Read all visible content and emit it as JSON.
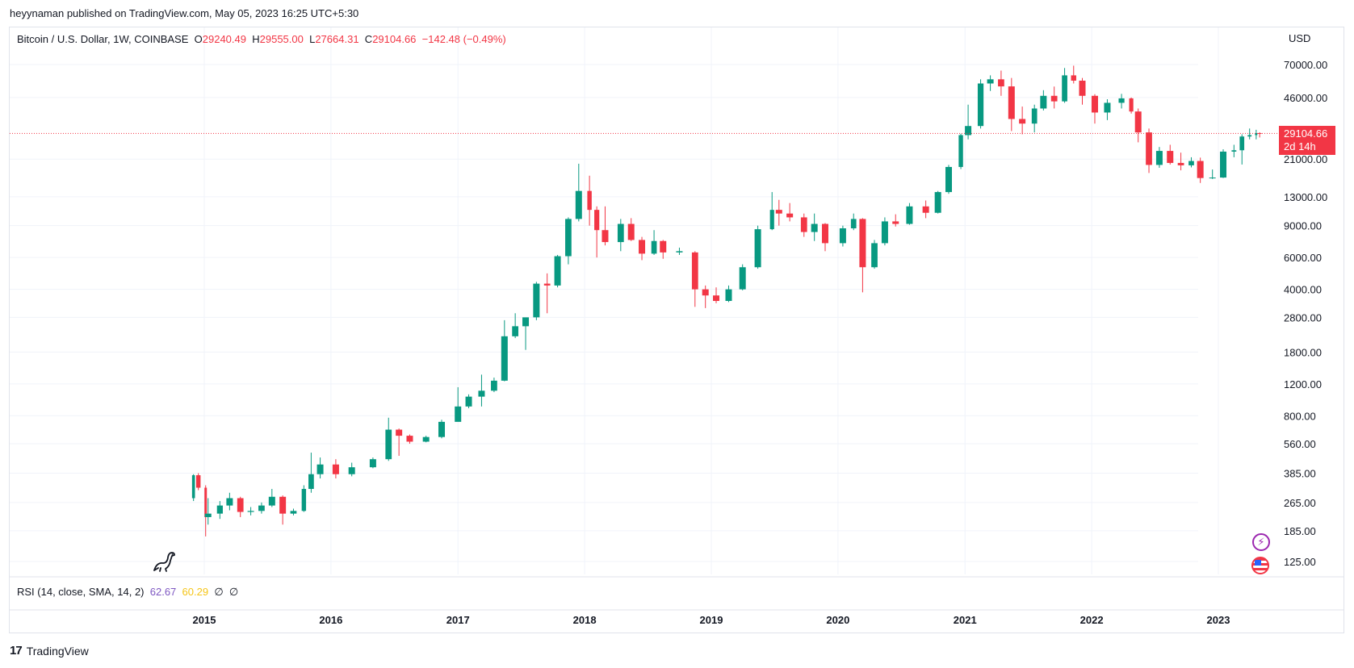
{
  "header": {
    "publisher_line": "heyynaman published on TradingView.com, May 05, 2023 16:25 UTC+5:30"
  },
  "legend": {
    "symbol": "Bitcoin / U.S. Dollar, 1W, COINBASE",
    "open_label": "O",
    "open": "29240.49",
    "high_label": "H",
    "high": "29555.00",
    "low_label": "L",
    "low": "27664.31",
    "close_label": "C",
    "close": "29104.66",
    "change": "−142.48 (−0.49%)"
  },
  "price_tag": {
    "price": "29104.66",
    "countdown": "2d 14h"
  },
  "rsi": {
    "label": "RSI (14, close, SMA, 14, 2)",
    "value": "62.67",
    "sma": "60.29",
    "extra1": "∅",
    "extra2": "∅"
  },
  "footer": {
    "brand": "TradingView",
    "logo_icon": "tradingview-logo-icon"
  },
  "colors": {
    "up": "#089981",
    "down": "#f23645",
    "grid": "#f0f3fa",
    "text": "#131722",
    "rsi_line": "#7e57c2",
    "rsi_sma": "#f5c518"
  },
  "chart_data": {
    "type": "candlestick",
    "scale": "log",
    "currency": "USD",
    "last_price": 29104.66,
    "x_range": [
      "2014-11-30",
      "2023-04-30"
    ],
    "y_ticks": [
      125,
      185,
      265,
      385,
      560,
      800,
      1200,
      1800,
      2800,
      4000,
      6000,
      9000,
      13000,
      21000,
      29104.66,
      46000,
      70000
    ],
    "y_tick_labels": [
      "125.00",
      "185.00",
      "265.00",
      "385.00",
      "560.00",
      "800.00",
      "1200.00",
      "1800.00",
      "2800.00",
      "4000.00",
      "6000.00",
      "9000.00",
      "13000.00",
      "21000.00",
      "29104.66",
      "46000.00",
      "70000.00"
    ],
    "x_ticks": [
      "2015",
      "2016",
      "2017",
      "2018",
      "2019",
      "2020",
      "2021",
      "2022",
      "2023"
    ],
    "grid": true,
    "series": [
      {
        "values": [
          [
            "2014-12-01",
            280,
            380,
            270,
            375
          ],
          [
            "2014-12-15",
            375,
            385,
            310,
            320
          ],
          [
            "2015-01-05",
            320,
            330,
            172,
            220
          ],
          [
            "2015-01-12",
            220,
            280,
            200,
            230
          ],
          [
            "2015-02-15",
            230,
            270,
            215,
            255
          ],
          [
            "2015-03-15",
            255,
            300,
            240,
            280
          ],
          [
            "2015-04-15",
            280,
            285,
            220,
            235
          ],
          [
            "2015-05-15",
            235,
            250,
            225,
            238
          ],
          [
            "2015-06-15",
            238,
            265,
            230,
            255
          ],
          [
            "2015-07-15",
            255,
            315,
            250,
            285
          ],
          [
            "2015-08-15",
            285,
            290,
            200,
            230
          ],
          [
            "2015-09-15",
            230,
            245,
            225,
            238
          ],
          [
            "2015-10-15",
            238,
            330,
            235,
            315
          ],
          [
            "2015-11-05",
            315,
            500,
            300,
            380
          ],
          [
            "2015-12-01",
            380,
            470,
            360,
            430
          ],
          [
            "2016-01-15",
            430,
            460,
            360,
            380
          ],
          [
            "2016-03-01",
            380,
            440,
            370,
            415
          ],
          [
            "2016-05-01",
            415,
            470,
            410,
            460
          ],
          [
            "2016-06-15",
            460,
            780,
            450,
            670
          ],
          [
            "2016-07-15",
            670,
            680,
            480,
            620
          ],
          [
            "2016-08-15",
            620,
            630,
            560,
            575
          ],
          [
            "2016-10-01",
            575,
            620,
            570,
            610
          ],
          [
            "2016-11-15",
            610,
            760,
            600,
            740
          ],
          [
            "2017-01-01",
            740,
            1150,
            750,
            900
          ],
          [
            "2017-02-01",
            900,
            1050,
            880,
            1020
          ],
          [
            "2017-03-10",
            1020,
            1350,
            900,
            1100
          ],
          [
            "2017-04-15",
            1100,
            1300,
            1080,
            1250
          ],
          [
            "2017-05-15",
            1250,
            2700,
            1240,
            2200
          ],
          [
            "2017-06-15",
            2200,
            2950,
            2150,
            2500
          ],
          [
            "2017-07-15",
            2500,
            2600,
            1850,
            2800
          ],
          [
            "2017-08-15",
            2800,
            4400,
            2700,
            4300
          ],
          [
            "2017-09-15",
            4300,
            4900,
            2950,
            4200
          ],
          [
            "2017-10-15",
            4200,
            6200,
            4100,
            6100
          ],
          [
            "2017-11-15",
            6100,
            10000,
            5500,
            9800
          ],
          [
            "2017-12-15",
            9800,
            19800,
            9500,
            14000
          ],
          [
            "2018-01-15",
            14000,
            17000,
            9000,
            11000
          ],
          [
            "2018-02-05",
            11000,
            11500,
            6000,
            8500
          ],
          [
            "2018-03-01",
            8500,
            11500,
            7000,
            7300
          ],
          [
            "2018-04-15",
            7300,
            9800,
            6500,
            9200
          ],
          [
            "2018-05-15",
            9200,
            9900,
            7400,
            7500
          ],
          [
            "2018-06-15",
            7500,
            7800,
            5800,
            6300
          ],
          [
            "2018-07-20",
            6300,
            8500,
            6200,
            7400
          ],
          [
            "2018-08-15",
            7400,
            7500,
            5900,
            6400
          ],
          [
            "2018-10-01",
            6400,
            6800,
            6200,
            6500
          ],
          [
            "2018-11-15",
            6400,
            6500,
            3200,
            4000
          ],
          [
            "2018-12-15",
            4000,
            4200,
            3150,
            3700
          ],
          [
            "2019-01-15",
            3700,
            4100,
            3350,
            3450
          ],
          [
            "2019-02-20",
            3450,
            4200,
            3400,
            4000
          ],
          [
            "2019-04-01",
            4000,
            5500,
            3950,
            5300
          ],
          [
            "2019-05-15",
            5300,
            9000,
            5200,
            8600
          ],
          [
            "2019-06-25",
            8600,
            13800,
            8500,
            11000
          ],
          [
            "2019-07-15",
            11000,
            12500,
            9000,
            10500
          ],
          [
            "2019-08-15",
            10500,
            12000,
            9500,
            10000
          ],
          [
            "2019-09-25",
            10000,
            10500,
            7800,
            8300
          ],
          [
            "2019-10-25",
            8300,
            10500,
            7400,
            9200
          ],
          [
            "2019-11-25",
            9200,
            9300,
            6500,
            7200
          ],
          [
            "2020-01-15",
            7200,
            9000,
            6900,
            8700
          ],
          [
            "2020-02-15",
            8700,
            10500,
            8500,
            9800
          ],
          [
            "2020-03-12",
            9800,
            9900,
            3850,
            5300
          ],
          [
            "2020-04-15",
            5300,
            7500,
            5200,
            7200
          ],
          [
            "2020-05-15",
            7200,
            10000,
            7000,
            9500
          ],
          [
            "2020-06-15",
            9500,
            10400,
            8900,
            9200
          ],
          [
            "2020-07-25",
            9200,
            12000,
            9100,
            11500
          ],
          [
            "2020-09-10",
            11500,
            12400,
            9900,
            10600
          ],
          [
            "2020-10-15",
            10600,
            14000,
            10500,
            13800
          ],
          [
            "2020-11-15",
            13800,
            19500,
            13500,
            19000
          ],
          [
            "2020-12-20",
            19000,
            29000,
            18500,
            28500
          ],
          [
            "2021-01-10",
            28500,
            42000,
            27000,
            32000
          ],
          [
            "2021-02-15",
            32000,
            58000,
            31000,
            55000
          ],
          [
            "2021-03-15",
            55000,
            61000,
            50000,
            58000
          ],
          [
            "2021-04-15",
            58000,
            64800,
            47000,
            53000
          ],
          [
            "2021-05-15",
            53000,
            59000,
            30000,
            35000
          ],
          [
            "2021-06-15",
            35000,
            41000,
            28800,
            33000
          ],
          [
            "2021-07-20",
            33000,
            42000,
            29500,
            40000
          ],
          [
            "2021-08-15",
            40000,
            50500,
            39000,
            47000
          ],
          [
            "2021-09-15",
            47000,
            52900,
            40000,
            43800
          ],
          [
            "2021-10-15",
            43800,
            67000,
            43000,
            61000
          ],
          [
            "2021-11-10",
            61000,
            69000,
            55000,
            57000
          ],
          [
            "2021-12-05",
            57000,
            59000,
            42000,
            47000
          ],
          [
            "2022-01-10",
            47000,
            48000,
            33000,
            38000
          ],
          [
            "2022-02-15",
            38000,
            45000,
            34500,
            43000
          ],
          [
            "2022-03-28",
            43000,
            48200,
            40000,
            45500
          ],
          [
            "2022-04-25",
            45500,
            46000,
            37500,
            38500
          ],
          [
            "2022-05-15",
            38500,
            40000,
            26000,
            29500
          ],
          [
            "2022-06-15",
            29500,
            31000,
            17600,
            19500
          ],
          [
            "2022-07-15",
            19500,
            24500,
            18800,
            23300
          ],
          [
            "2022-08-15",
            23300,
            25200,
            19600,
            20000
          ],
          [
            "2022-09-15",
            20000,
            22800,
            18200,
            19400
          ],
          [
            "2022-10-15",
            19400,
            21500,
            18900,
            20500
          ],
          [
            "2022-11-10",
            20500,
            21400,
            15500,
            16500
          ],
          [
            "2022-12-15",
            16500,
            18400,
            16300,
            16600
          ],
          [
            "2023-01-15",
            16600,
            23800,
            16500,
            23100
          ],
          [
            "2023-02-15",
            23100,
            25200,
            21500,
            23500
          ],
          [
            "2023-03-10",
            23500,
            28800,
            19600,
            28000
          ],
          [
            "2023-04-01",
            28000,
            31000,
            27000,
            28500
          ],
          [
            "2023-04-20",
            28500,
            30500,
            27000,
            29240
          ],
          [
            "2023-04-30",
            29240.49,
            29555,
            27664.31,
            29104.66
          ]
        ]
      }
    ],
    "rsi_value": 62.67,
    "rsi_sma": 60.29
  }
}
